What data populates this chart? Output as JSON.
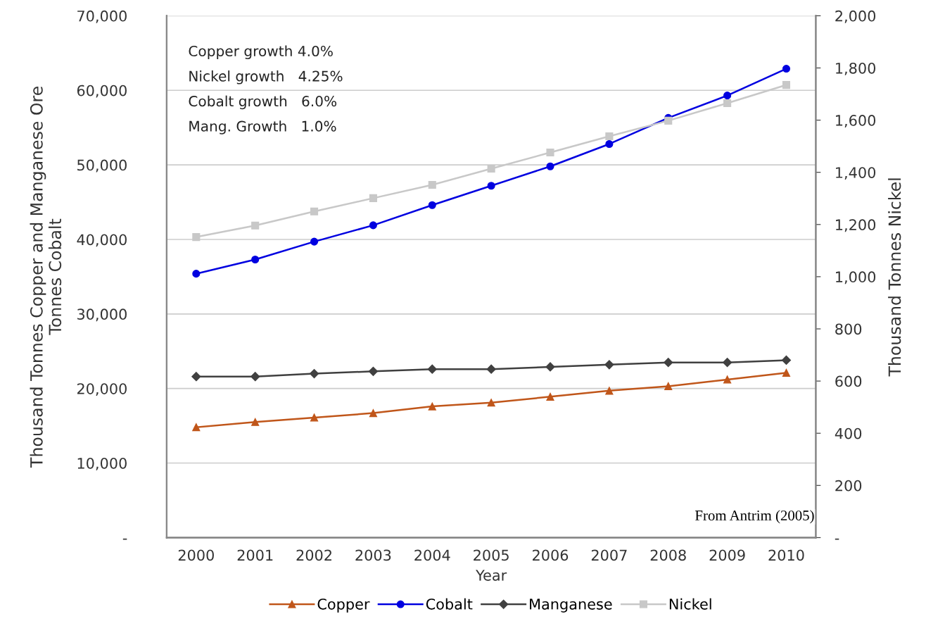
{
  "chart_data": {
    "type": "line",
    "xlabel": "Year",
    "ylabel": "Thousand Tonnes Copper and Manganese Ore\nTonnes Cobalt",
    "y2label": "Thousand Tonnes Nickel",
    "categories": [
      "2000",
      "2001",
      "2002",
      "2003",
      "2004",
      "2005",
      "2006",
      "2007",
      "2008",
      "2009",
      "2010"
    ],
    "series": [
      {
        "name": "Copper",
        "color": "#c0561a",
        "marker": "triangle",
        "values": [
          14800,
          15500,
          16100,
          16700,
          17600,
          18100,
          18900,
          19700,
          20300,
          21200,
          22100
        ]
      },
      {
        "name": "Cobalt",
        "color": "#0000e0",
        "marker": "circle",
        "values": [
          35400,
          37300,
          39700,
          41900,
          44600,
          47200,
          49800,
          52800,
          56300,
          59300,
          62900
        ]
      },
      {
        "name": "Manganese",
        "color": "#404040",
        "marker": "diamond",
        "values": [
          21600,
          21600,
          22000,
          22300,
          22600,
          22600,
          22900,
          23200,
          23500,
          23500,
          23800
        ]
      },
      {
        "name": "Nickel",
        "color": "#c8c8c8",
        "marker": "square",
        "axis": "y2",
        "values": [
          1152,
          1196,
          1250,
          1301,
          1352,
          1414,
          1476,
          1538,
          1598,
          1665,
          1735
        ]
      }
    ],
    "ylim": [
      0,
      70000
    ],
    "yticks": [
      {
        "value": 0,
        "label": "-"
      },
      {
        "value": 10000,
        "label": "10,000"
      },
      {
        "value": 20000,
        "label": "20,000"
      },
      {
        "value": 30000,
        "label": "30,000"
      },
      {
        "value": 40000,
        "label": "40,000"
      },
      {
        "value": 50000,
        "label": "50,000"
      },
      {
        "value": 60000,
        "label": "60,000"
      },
      {
        "value": 70000,
        "label": "70,000"
      }
    ],
    "y2lim": [
      0,
      2000
    ],
    "y2ticks": [
      {
        "value": 0,
        "label": "-"
      },
      {
        "value": 200,
        "label": "200"
      },
      {
        "value": 400,
        "label": "400"
      },
      {
        "value": 600,
        "label": "600"
      },
      {
        "value": 800,
        "label": "800"
      },
      {
        "value": 1000,
        "label": "1,000"
      },
      {
        "value": 1200,
        "label": "1,200"
      },
      {
        "value": 1400,
        "label": "1,400"
      },
      {
        "value": 1600,
        "label": "1,600"
      },
      {
        "value": 1800,
        "label": "1,800"
      },
      {
        "value": 2000,
        "label": "2,000"
      }
    ],
    "grid": "y",
    "legend": "bottom",
    "line_style": "solid",
    "annotations": [
      "Copper growth 4.0%",
      "Nickel growth   4.25%",
      "Cobalt growth   6.0%",
      "Mang. Growth   1.0%",
      "From Antrim (2005)"
    ]
  }
}
